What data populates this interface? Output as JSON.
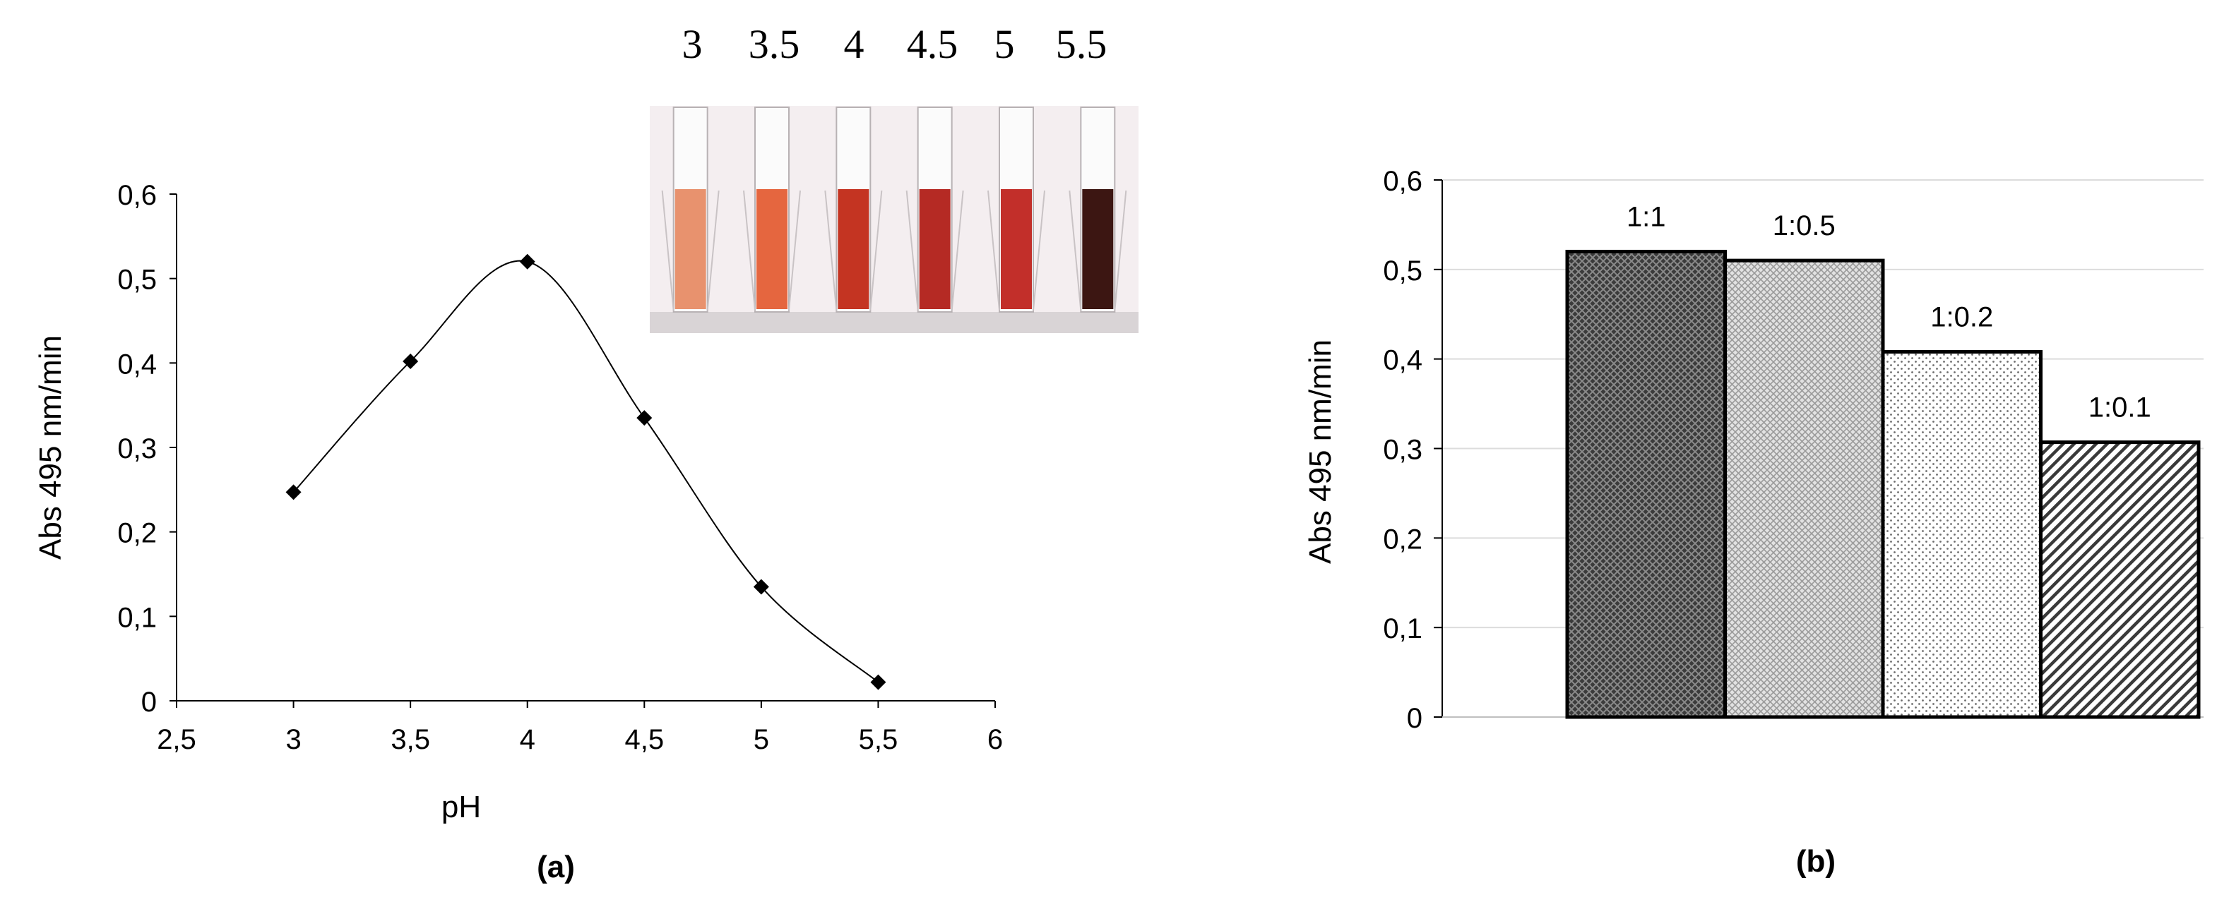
{
  "photo": {
    "labels": [
      "3",
      "3.5",
      "4",
      "4.5",
      "5",
      "5.5"
    ],
    "cuvette_colors": [
      "#e8926e",
      "#e5663f",
      "#c43422",
      "#b52a24",
      "#c22f2a",
      "#3c1612"
    ],
    "background_color": "#f4eef0"
  },
  "chart_data": [
    {
      "type": "line",
      "panel_label": "(a)",
      "xlabel": "pH",
      "ylabel": "Abs 495 nm/min",
      "x": [
        3,
        3.5,
        4,
        4.5,
        5,
        5.5
      ],
      "y": [
        0.247,
        0.402,
        0.52,
        0.335,
        0.135,
        0.022
      ],
      "xlim": [
        2.5,
        6
      ],
      "ylim": [
        0,
        0.6
      ],
      "xticks": [
        "2,5",
        "3",
        "3,5",
        "4",
        "4,5",
        "5",
        "5,5",
        "6"
      ],
      "yticks": [
        "0",
        "0,1",
        "0,2",
        "0,3",
        "0,4",
        "0,5",
        "0,6"
      ],
      "smooth": true,
      "marker": "diamond",
      "grid": false
    },
    {
      "type": "bar",
      "panel_label": "(b)",
      "ylabel": "Abs 495 nm/min",
      "categories": [
        "1:1",
        "1:0.5",
        "1:0.2",
        "1:0.1"
      ],
      "values": [
        0.52,
        0.51,
        0.408,
        0.307
      ],
      "ylim": [
        0,
        0.6
      ],
      "yticks": [
        "0",
        "0,1",
        "0,2",
        "0,3",
        "0,4",
        "0,5",
        "0,6"
      ],
      "patterns": [
        "dense-crosshatch-dark",
        "crosshatch-grey",
        "dotted-light",
        "diagonal-hatch"
      ],
      "grid": true
    }
  ]
}
